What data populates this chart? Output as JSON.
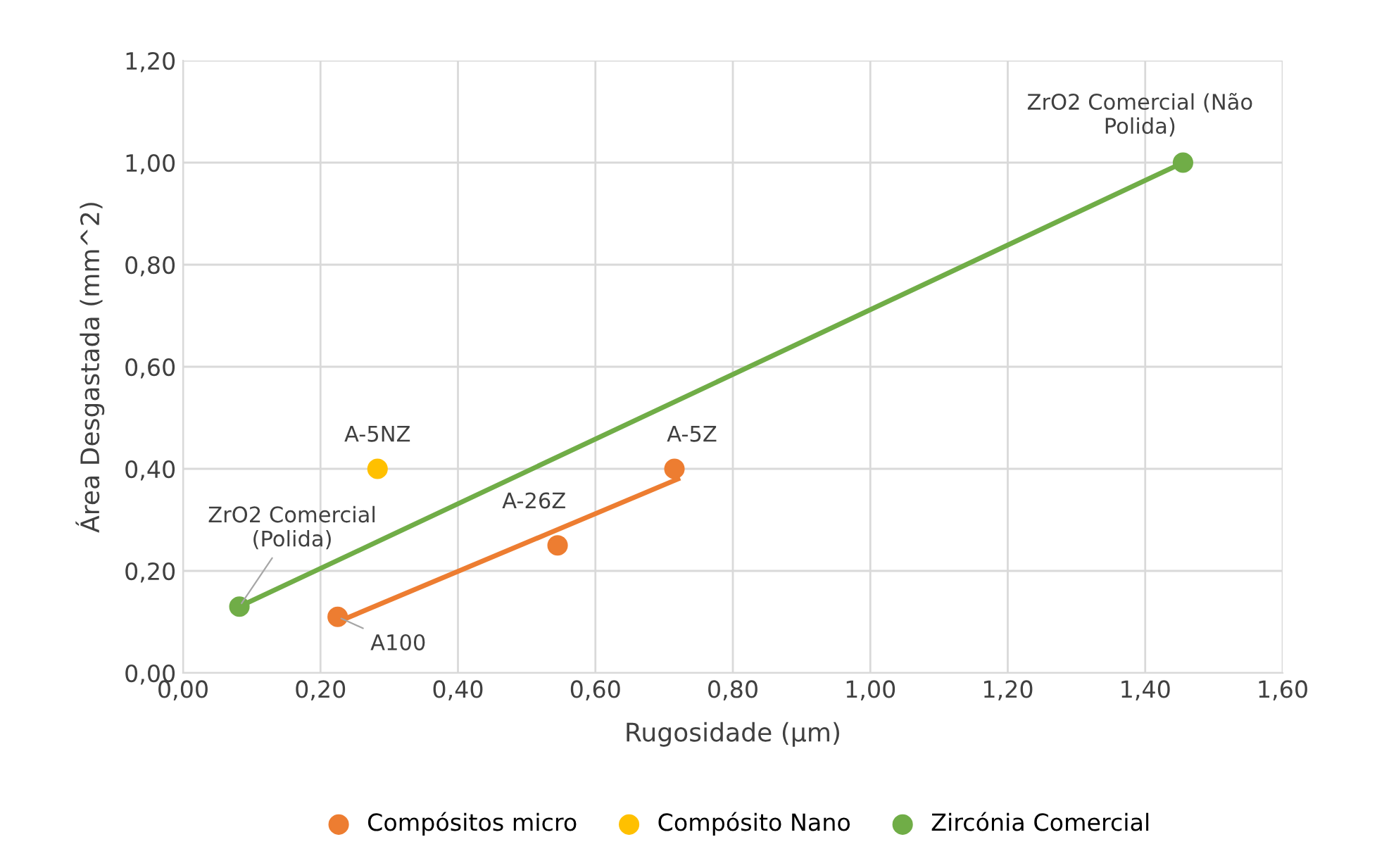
{
  "chart_data": {
    "type": "scatter",
    "xlabel": "Rugosidade (µm)",
    "ylabel": "Área Desgastada (mm^2)",
    "xlim": [
      0,
      1.6
    ],
    "xticks": [
      {
        "value": 0,
        "label": "0,00"
      },
      {
        "value": 0.2,
        "label": "0,20"
      },
      {
        "value": 0.4,
        "label": "0,40"
      },
      {
        "value": 0.6,
        "label": "0,60"
      },
      {
        "value": 0.8,
        "label": "0,80"
      },
      {
        "value": 1.0,
        "label": "1,00"
      },
      {
        "value": 1.2,
        "label": "1,20"
      },
      {
        "value": 1.4,
        "label": "1,40"
      },
      {
        "value": 1.6,
        "label": "1,60"
      }
    ],
    "ylim": [
      0,
      1.2
    ],
    "yticks": [
      {
        "value": 0,
        "label": "0,00"
      },
      {
        "value": 0.2,
        "label": "0,20"
      },
      {
        "value": 0.4,
        "label": "0,40"
      },
      {
        "value": 0.6,
        "label": "0,60"
      },
      {
        "value": 0.8,
        "label": "0,80"
      },
      {
        "value": 1.0,
        "label": "1,00"
      },
      {
        "value": 1.2,
        "label": "1,20"
      }
    ],
    "grid": true,
    "legend": "bottom",
    "series": [
      {
        "name": "Compósitos micro",
        "marker": "circle",
        "color": "#ed7d31",
        "x": [
          0.225,
          0.545,
          0.715
        ],
        "values": [
          0.11,
          0.25,
          0.4
        ]
      },
      {
        "name": "Compósito Nano",
        "marker": "circle",
        "color": "#ffc000",
        "x": [
          0.283
        ],
        "values": [
          0.4
        ]
      },
      {
        "name": "Zircónia Comercial",
        "marker": "circle",
        "color": "#70ad47",
        "x": [
          0.082,
          1.455
        ],
        "values": [
          0.13,
          1.0
        ]
      },
      {
        "type": "line",
        "color": "#ed7d31",
        "x": [
          0.225,
          0.72
        ],
        "values": [
          0.1,
          0.38
        ]
      },
      {
        "type": "line",
        "color": "#70ad47",
        "x": [
          0.082,
          1.455
        ],
        "values": [
          0.13,
          1.0
        ]
      }
    ],
    "annotations": [
      {
        "text": "A100",
        "x": 0.225,
        "y": 0.11
      },
      {
        "text": "A-26Z",
        "x": 0.545,
        "y": 0.25
      },
      {
        "text": "A-5Z",
        "x": 0.715,
        "y": 0.4
      },
      {
        "text": "A-5NZ",
        "x": 0.283,
        "y": 0.4
      },
      {
        "text": "ZrO2 Comercial\n(Polida)",
        "x": 0.082,
        "y": 0.13
      },
      {
        "text": "ZrO2 Comercial (Não\nPolida)",
        "x": 1.455,
        "y": 1.0
      }
    ]
  }
}
